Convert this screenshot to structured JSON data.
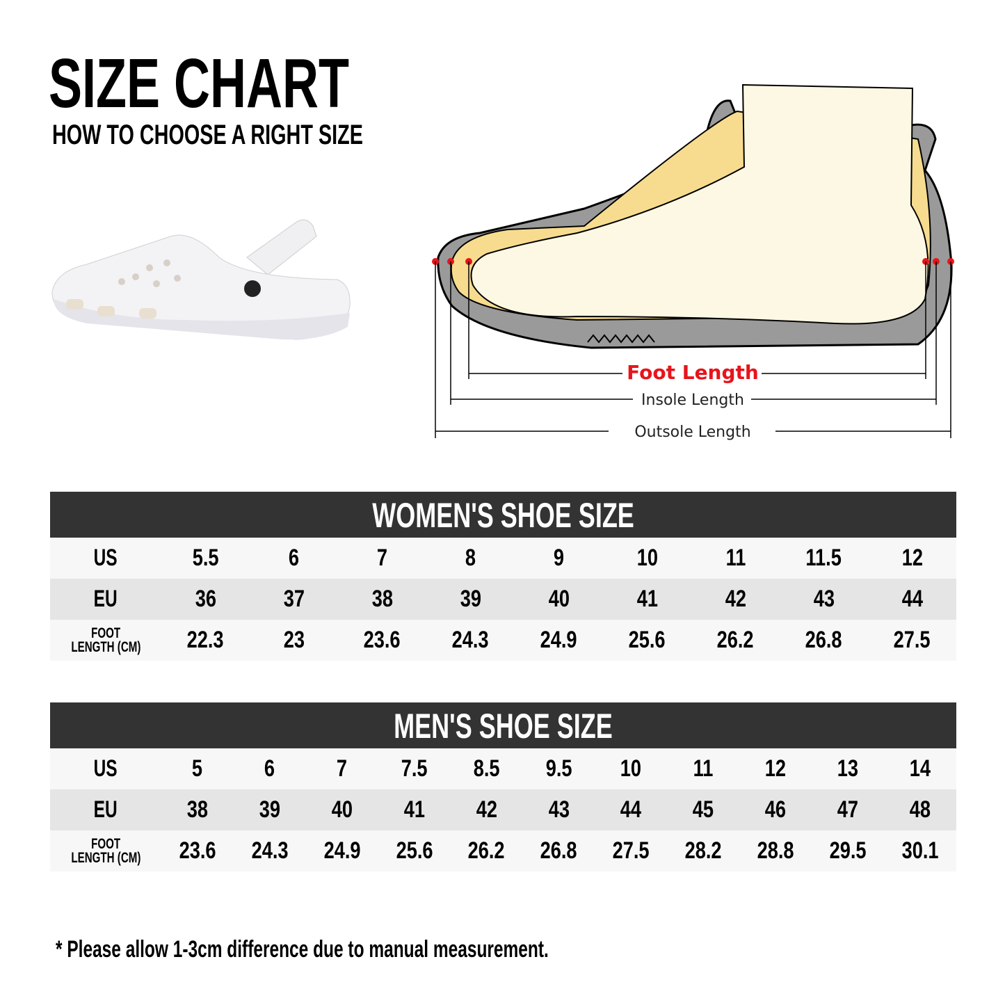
{
  "title": "SIZE CHART",
  "subtitle": "HOW TO CHOOSE A RIGHT SIZE",
  "diagram": {
    "foot_length": "Foot Length",
    "insole_length": "Insole Length",
    "outsole_length": "Outsole Length",
    "accent": "#e8141b"
  },
  "women": {
    "heading": "WOMEN'S SHOE SIZE",
    "labels": {
      "us": "US",
      "eu": "EU",
      "foot1": "FOOT",
      "foot2": "LENGTH (CM)"
    },
    "us": [
      "5.5",
      "6",
      "7",
      "8",
      "9",
      "10",
      "11",
      "11.5",
      "12"
    ],
    "eu": [
      "36",
      "37",
      "38",
      "39",
      "40",
      "41",
      "42",
      "43",
      "44"
    ],
    "cm": [
      "22.3",
      "23",
      "23.6",
      "24.3",
      "24.9",
      "25.6",
      "26.2",
      "26.8",
      "27.5"
    ]
  },
  "men": {
    "heading": "MEN'S SHOE SIZE",
    "labels": {
      "us": "US",
      "eu": "EU",
      "foot1": "FOOT",
      "foot2": "LENGTH (CM)"
    },
    "us": [
      "5",
      "6",
      "7",
      "7.5",
      "8.5",
      "9.5",
      "10",
      "11",
      "12",
      "13",
      "14"
    ],
    "eu": [
      "38",
      "39",
      "40",
      "41",
      "42",
      "43",
      "44",
      "45",
      "46",
      "47",
      "48"
    ],
    "cm": [
      "23.6",
      "24.3",
      "24.9",
      "25.6",
      "26.2",
      "26.8",
      "27.5",
      "28.2",
      "28.8",
      "29.5",
      "30.1"
    ]
  },
  "note": "* Please allow 1-3cm difference due to manual measurement."
}
